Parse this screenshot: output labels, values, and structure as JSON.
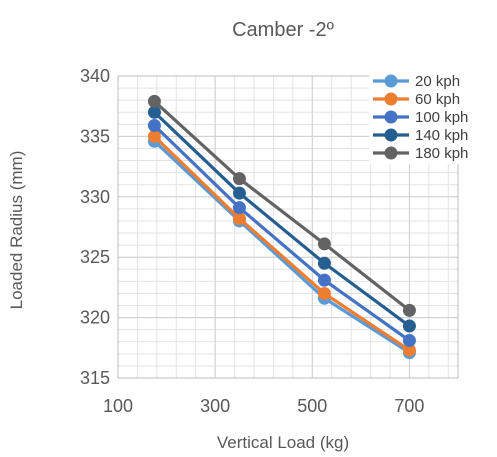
{
  "chart_data": {
    "type": "line",
    "title": "Camber -2º",
    "xlabel": "Vertical Load (kg)",
    "ylabel": "Loaded Radius (mm)",
    "xlim": [
      100,
      800
    ],
    "ylim": [
      315,
      340
    ],
    "x_ticks": [
      100,
      300,
      500,
      700
    ],
    "y_ticks": [
      315,
      320,
      325,
      330,
      335,
      340
    ],
    "x": [
      175,
      350,
      525,
      700
    ],
    "grid": true,
    "minor_grid": true,
    "legend_position": "top-right",
    "series": [
      {
        "name": "20 kph",
        "color": "#5B9BD5",
        "values": [
          334.6,
          328.0,
          321.6,
          317.1
        ]
      },
      {
        "name": "60 kph",
        "color": "#ED7D31",
        "values": [
          335.0,
          328.2,
          322.0,
          317.3
        ]
      },
      {
        "name": "100 kph",
        "color": "#4472C4",
        "values": [
          335.9,
          329.1,
          323.1,
          318.1
        ]
      },
      {
        "name": "140 kph",
        "color": "#255E91",
        "values": [
          337.0,
          330.3,
          324.5,
          319.3
        ]
      },
      {
        "name": "180 kph",
        "color": "#636363",
        "values": [
          337.9,
          331.5,
          326.1,
          320.6
        ]
      }
    ]
  }
}
